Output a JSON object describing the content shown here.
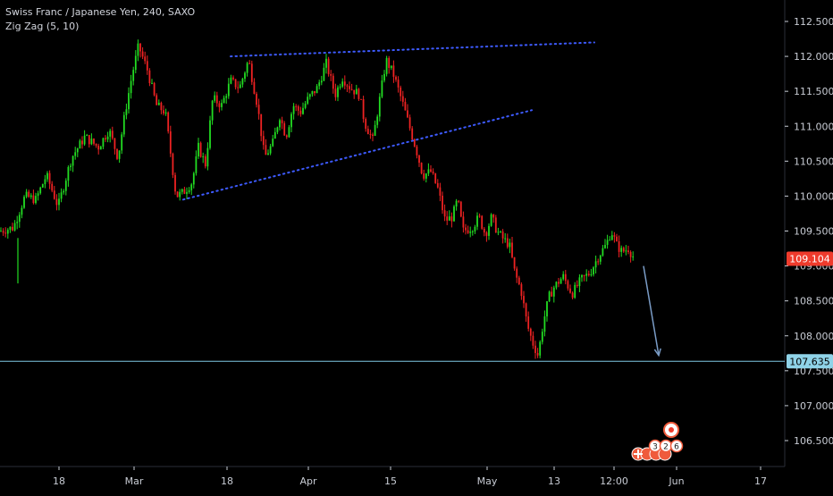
{
  "header": {
    "title": "Swiss Franc / Japanese Yen, 240, SAXO",
    "indicator": "Zig Zag (5, 10)"
  },
  "colors": {
    "background": "#000000",
    "up_candle": "#22dd22",
    "down_candle": "#ee2222",
    "axis_text": "#c8ccd4",
    "trendline": "#3d5afe",
    "horizontal_line": "#7ec8e3",
    "arrow": "#7a9cc6",
    "last_price_badge": "#ef3b2c",
    "level_badge": "#8fd3e8"
  },
  "chart_data": {
    "type": "candlestick",
    "title": "Swiss Franc / Japanese Yen, 240, SAXO",
    "ylim": [
      106.1,
      112.75
    ],
    "y_ticks": [
      "112.500",
      "112.000",
      "111.500",
      "111.000",
      "110.500",
      "110.000",
      "109.500",
      "109.000",
      "108.500",
      "108.000",
      "107.500",
      "107.000",
      "106.500"
    ],
    "x_ticks": [
      "18",
      "Mar",
      "18",
      "Apr",
      "15",
      "May",
      "13",
      "12:00",
      "Jun",
      "17"
    ],
    "grid": false,
    "last_price": "109.104",
    "horizontal_level": "107.635",
    "close_path": [
      [
        0,
        109.5
      ],
      [
        15,
        109.55
      ],
      [
        28,
        110.0
      ],
      [
        40,
        109.95
      ],
      [
        52,
        110.3
      ],
      [
        65,
        109.85
      ],
      [
        80,
        110.55
      ],
      [
        95,
        110.85
      ],
      [
        110,
        110.7
      ],
      [
        122,
        110.95
      ],
      [
        132,
        110.55
      ],
      [
        140,
        111.2
      ],
      [
        148,
        111.75
      ],
      [
        155,
        112.15
      ],
      [
        165,
        111.8
      ],
      [
        175,
        111.3
      ],
      [
        185,
        111.2
      ],
      [
        190,
        110.7
      ],
      [
        197,
        110.0
      ],
      [
        205,
        110.05
      ],
      [
        215,
        110.2
      ],
      [
        222,
        110.7
      ],
      [
        230,
        110.45
      ],
      [
        238,
        111.4
      ],
      [
        248,
        111.3
      ],
      [
        258,
        111.65
      ],
      [
        268,
        111.55
      ],
      [
        278,
        111.95
      ],
      [
        288,
        111.3
      ],
      [
        296,
        110.55
      ],
      [
        305,
        110.75
      ],
      [
        313,
        111.15
      ],
      [
        320,
        110.85
      ],
      [
        328,
        111.3
      ],
      [
        336,
        111.2
      ],
      [
        345,
        111.4
      ],
      [
        355,
        111.55
      ],
      [
        365,
        111.9
      ],
      [
        375,
        111.45
      ],
      [
        383,
        111.7
      ],
      [
        392,
        111.55
      ],
      [
        402,
        111.45
      ],
      [
        408,
        111.05
      ],
      [
        417,
        110.8
      ],
      [
        425,
        111.4
      ],
      [
        432,
        111.95
      ],
      [
        440,
        111.75
      ],
      [
        450,
        111.35
      ],
      [
        458,
        111.0
      ],
      [
        466,
        110.65
      ],
      [
        473,
        110.3
      ],
      [
        482,
        110.35
      ],
      [
        490,
        110.1
      ],
      [
        498,
        109.65
      ],
      [
        506,
        109.7
      ],
      [
        512,
        109.95
      ],
      [
        518,
        109.5
      ],
      [
        528,
        109.55
      ],
      [
        536,
        109.7
      ],
      [
        543,
        109.45
      ],
      [
        550,
        109.7
      ],
      [
        556,
        109.5
      ],
      [
        562,
        109.4
      ],
      [
        570,
        109.3
      ],
      [
        576,
        108.9
      ],
      [
        583,
        108.65
      ],
      [
        590,
        108.15
      ],
      [
        596,
        107.9
      ],
      [
        602,
        107.72
      ],
      [
        608,
        108.2
      ],
      [
        614,
        108.55
      ],
      [
        620,
        108.7
      ],
      [
        630,
        108.85
      ],
      [
        640,
        108.6
      ],
      [
        650,
        108.8
      ],
      [
        660,
        108.9
      ],
      [
        670,
        109.15
      ],
      [
        678,
        109.3
      ],
      [
        684,
        109.5
      ],
      [
        690,
        109.3
      ],
      [
        696,
        109.2
      ],
      [
        703,
        109.25
      ],
      [
        710,
        109.1
      ]
    ],
    "lines": [
      {
        "kind": "dotted",
        "points": [
          [
            258,
            112.0
          ],
          [
            665,
            112.2
          ]
        ]
      },
      {
        "kind": "dotted",
        "points": [
          [
            205,
            109.95
          ],
          [
            595,
            111.23
          ]
        ]
      },
      {
        "kind": "arrow",
        "points": [
          [
            720,
            109.0
          ],
          [
            737,
            107.72
          ]
        ]
      }
    ]
  },
  "markers": {
    "labels": [
      "3",
      "2",
      "6"
    ]
  }
}
